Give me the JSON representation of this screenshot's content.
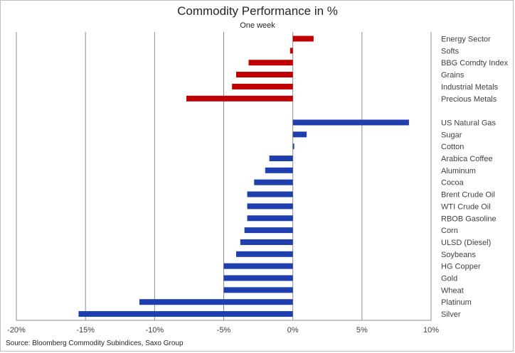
{
  "chart_data": {
    "type": "bar",
    "orientation": "horizontal",
    "title": "Commodity Performance in %",
    "subtitle": "One week",
    "source": "Source: Bloomberg Commodity Subindices, Saxo Group",
    "xlim": [
      -0.2,
      0.1
    ],
    "x_ticks": [
      "-20%",
      "-15%",
      "-10%",
      "-5%",
      "0%",
      "5%",
      "10%"
    ],
    "x_tick_values": [
      -0.2,
      -0.15,
      -0.1,
      -0.05,
      0.0,
      0.05,
      0.1
    ],
    "grid": true,
    "colors": {
      "sector": "#c00000",
      "commodity": "#1f3fae"
    },
    "groups": [
      {
        "categories": [
          "Energy Sector",
          "Softs",
          "BBG Comdty Index",
          "Grains",
          "Industrial Metals",
          "Precious Metals"
        ],
        "values": [
          0.015,
          -0.002,
          -0.032,
          -0.041,
          -0.044,
          -0.077
        ],
        "color_key": "sector"
      },
      {
        "categories": [
          "US Natural Gas",
          "Sugar",
          "Cotton",
          "Arabica Coffee",
          "Aluminum",
          "Cocoa",
          "Brent Crude Oil",
          "WTI Crude Oil",
          "RBOB Gasoline",
          "Corn",
          "ULSD (Diesel)",
          "Soybeans",
          "HG Copper",
          "Gold",
          "Wheat",
          "Platinum",
          "Silver"
        ],
        "values": [
          0.084,
          0.01,
          0.001,
          -0.017,
          -0.02,
          -0.028,
          -0.033,
          -0.033,
          -0.033,
          -0.035,
          -0.038,
          -0.041,
          -0.05,
          -0.05,
          -0.05,
          -0.111,
          -0.155
        ],
        "color_key": "commodity"
      }
    ]
  }
}
